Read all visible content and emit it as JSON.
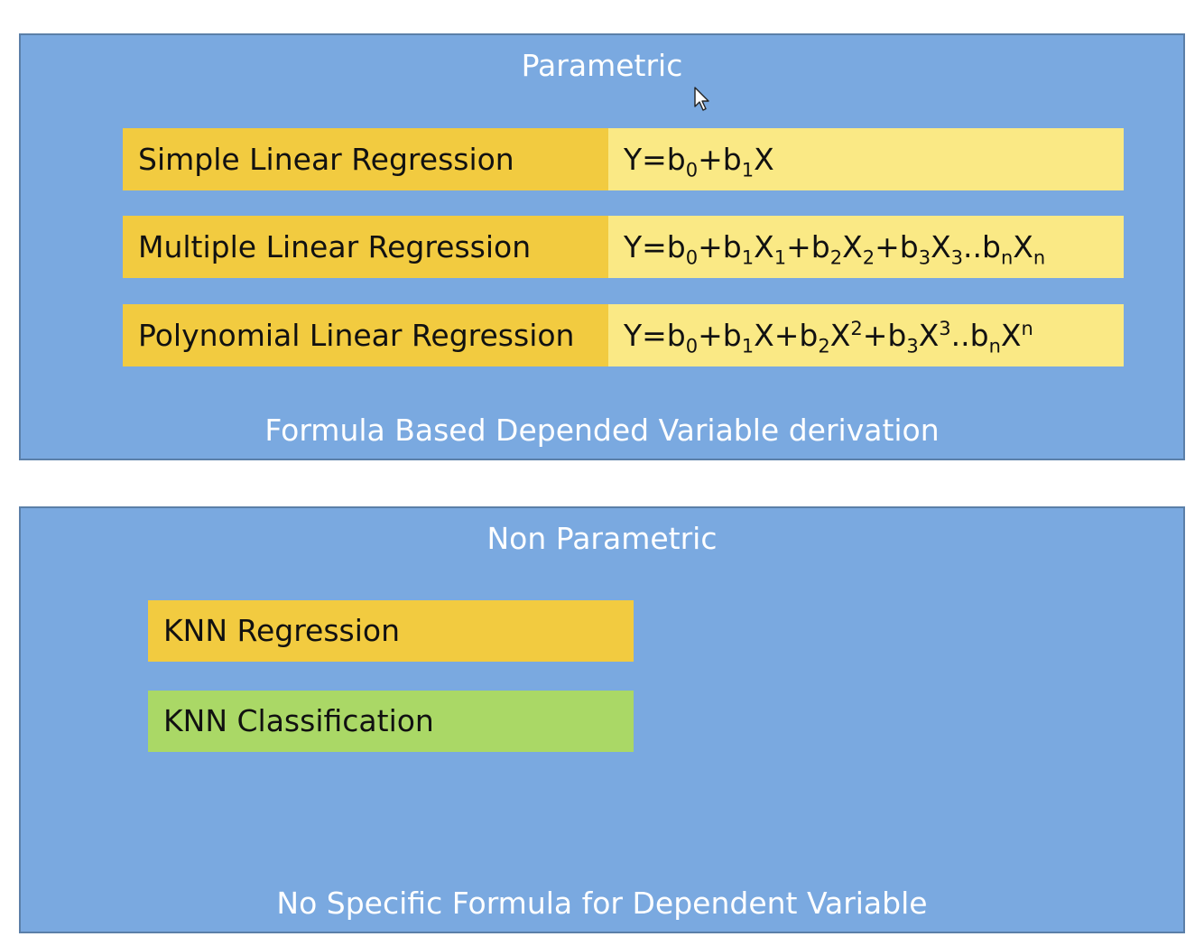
{
  "parametric": {
    "title": "Parametric",
    "footer": "Formula Based Depended Variable derivation",
    "models": [
      {
        "name": "Simple Linear Regression",
        "formula": [
          {
            "t": "Y=b"
          },
          {
            "sub": "0"
          },
          {
            "t": "+b"
          },
          {
            "sub": "1"
          },
          {
            "t": "X"
          }
        ]
      },
      {
        "name": "Multiple Linear Regression",
        "formula": [
          {
            "t": "Y=b"
          },
          {
            "sub": "0"
          },
          {
            "t": "+b"
          },
          {
            "sub": "1"
          },
          {
            "t": "X"
          },
          {
            "sub": "1"
          },
          {
            "t": "+b"
          },
          {
            "sub": "2"
          },
          {
            "t": "X"
          },
          {
            "sub": "2"
          },
          {
            "t": "+b"
          },
          {
            "sub": "3"
          },
          {
            "t": "X"
          },
          {
            "sub": "3"
          },
          {
            "t": "..b"
          },
          {
            "sub": "n"
          },
          {
            "t": "X"
          },
          {
            "sub": "n"
          }
        ]
      },
      {
        "name": "Polynomial Linear Regression",
        "formula": [
          {
            "t": "Y=b"
          },
          {
            "sub": "0"
          },
          {
            "t": "+b"
          },
          {
            "sub": "1"
          },
          {
            "t": "X+b"
          },
          {
            "sub": "2"
          },
          {
            "t": "X"
          },
          {
            "sup": "2"
          },
          {
            "t": "+b"
          },
          {
            "sub": "3"
          },
          {
            "t": "X"
          },
          {
            "sup": "3"
          },
          {
            "t": "..b"
          },
          {
            "sub": "n"
          },
          {
            "t": "X"
          },
          {
            "sup": "n"
          }
        ]
      }
    ]
  },
  "nonparametric": {
    "title": "Non Parametric",
    "footer": "No Specific Formula for Dependent Variable",
    "items": [
      {
        "label": "KNN Regression"
      },
      {
        "label": "KNN Classification"
      }
    ]
  },
  "colors": {
    "panel_bg": "#7aa9e0",
    "name_bg": "#f2cb40",
    "formula_bg": "#fae985",
    "classification_bg": "#aad866"
  },
  "cursor": {
    "icon": "mouse-pointer-icon"
  }
}
